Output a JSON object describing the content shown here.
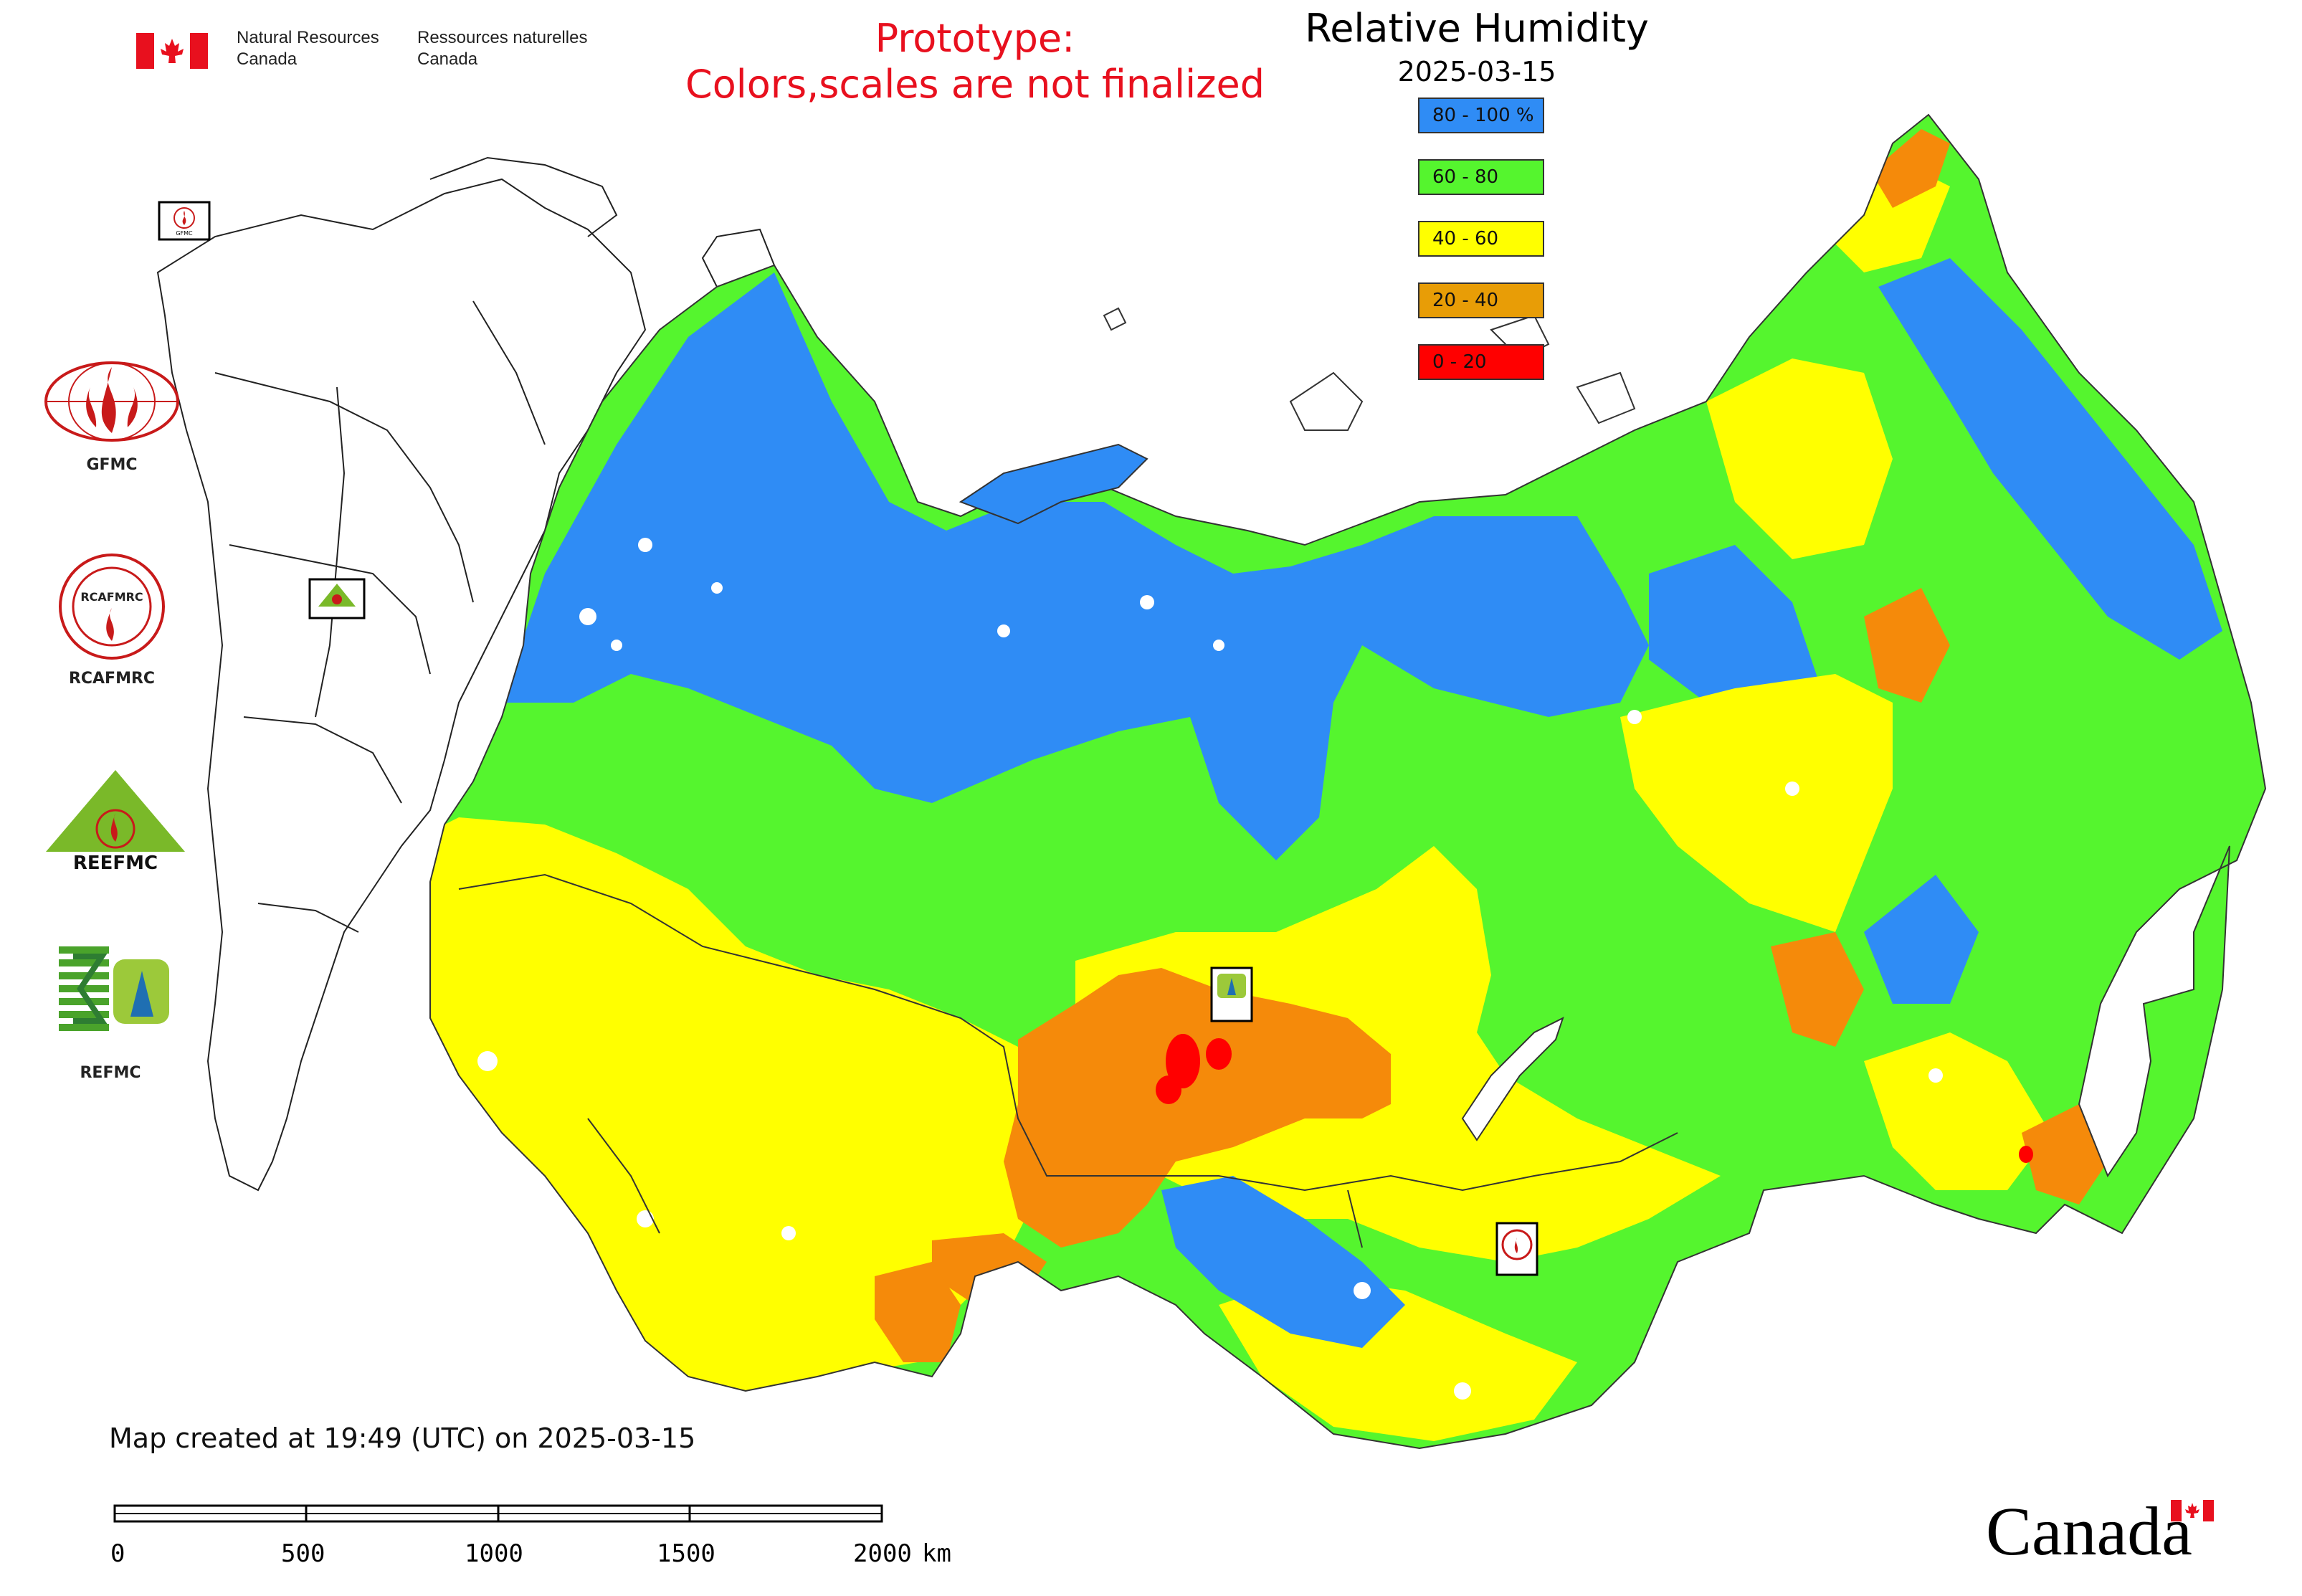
{
  "header": {
    "gov_en_line1": "Natural Resources",
    "gov_en_line2": "Canada",
    "gov_fr_line1": "Ressources naturelles",
    "gov_fr_line2": "Canada",
    "prototype_line1": "Prototype:",
    "prototype_line2": "Colors,scales are not finalized"
  },
  "map": {
    "title": "Relative Humidity",
    "date": "2025-03-15",
    "created_note": "Map created at 19:49 (UTC) on 2025-03-15"
  },
  "legend": [
    {
      "label": "80 - 100 %",
      "color": "#2f8cf5"
    },
    {
      "label": "60 - 80",
      "color": "#55f52e"
    },
    {
      "label": "40 - 60",
      "color": "#ffff00"
    },
    {
      "label": "20 - 40",
      "color": "#e89d06"
    },
    {
      "label": "0 - 20",
      "color": "#ff0000"
    }
  ],
  "logos": {
    "gfmc": "GFMC",
    "rcafmrc": "RCAFMRC",
    "reefmc": "REFMC",
    "reefmc_word": "REEFMC",
    "rcafmrc_word": "RCAFMRC"
  },
  "scale": {
    "ticks": [
      "0",
      "500",
      "1000",
      "1500",
      "2000"
    ],
    "unit": "km"
  },
  "footer": {
    "wordmark": "Canada"
  },
  "colors": {
    "blue": "#2f8cf5",
    "green": "#55f52e",
    "yellow": "#ffff00",
    "orange": "#f58a0a",
    "red": "#ff0000",
    "accent_red": "#e8101e"
  }
}
